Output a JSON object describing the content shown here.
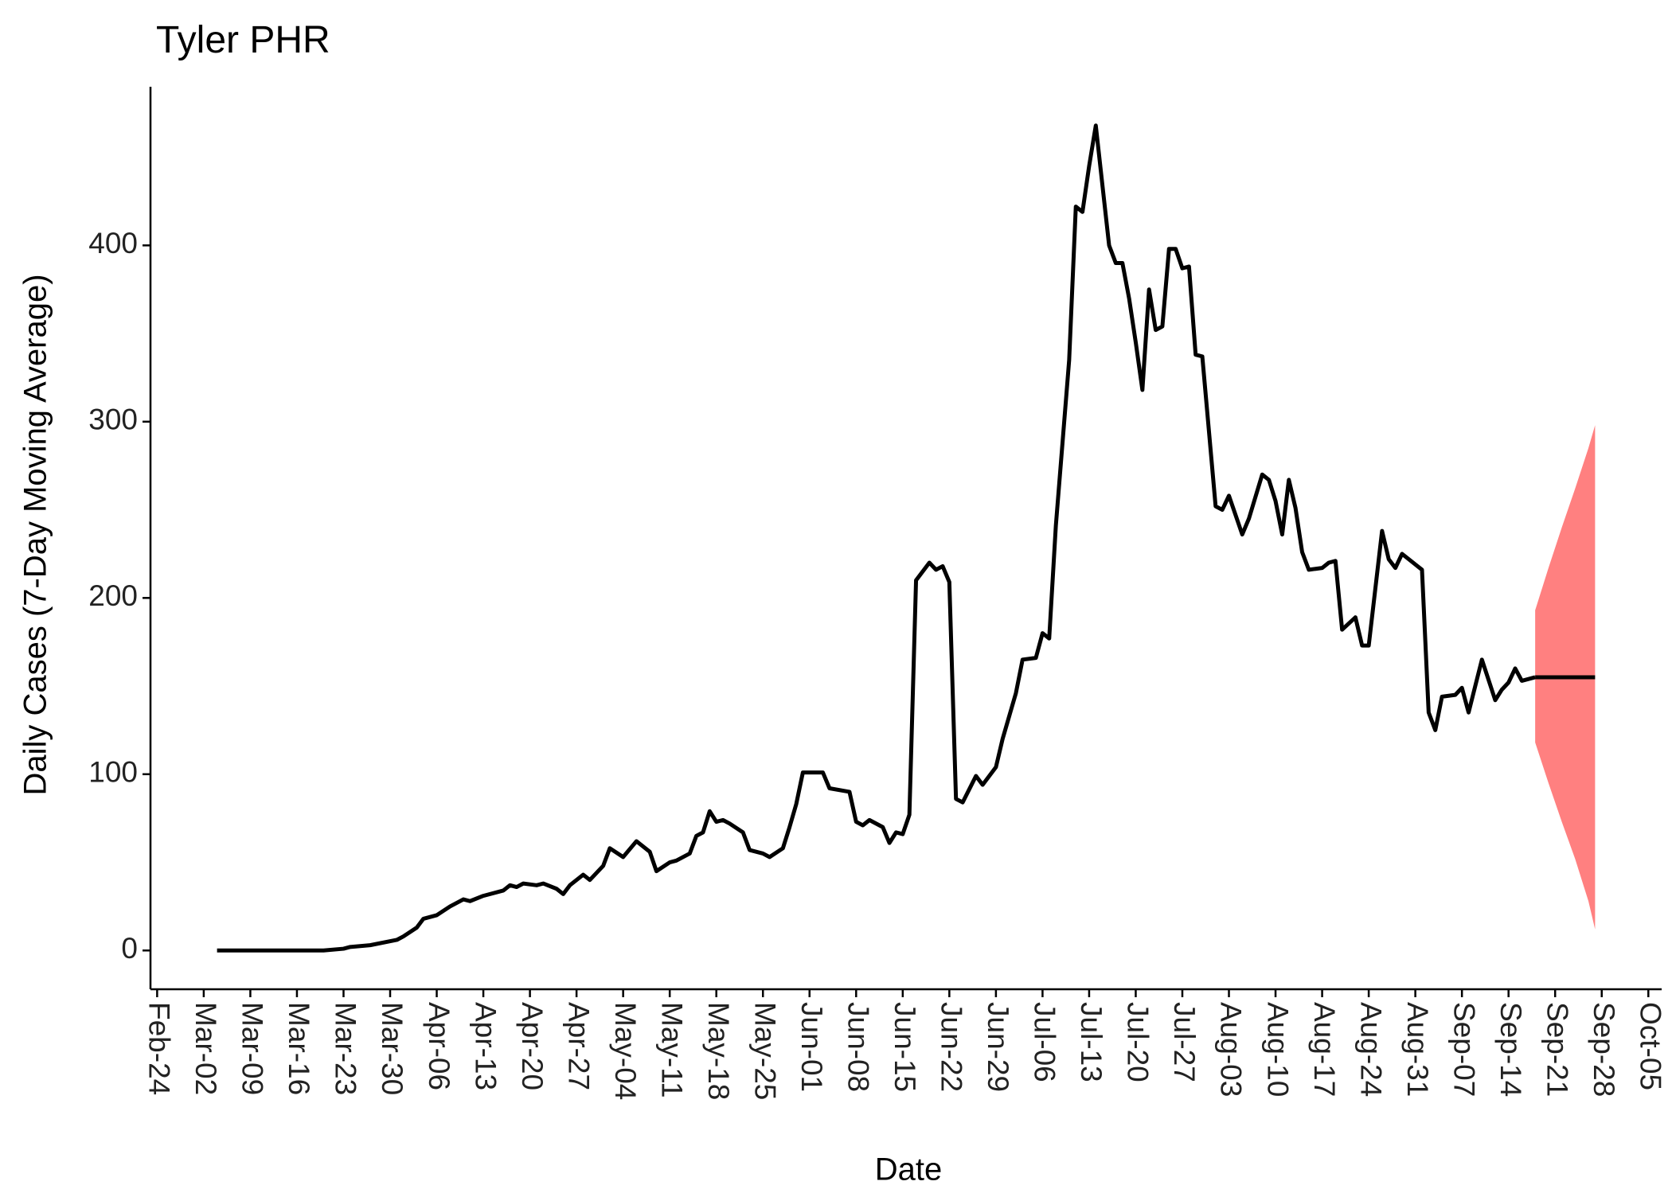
{
  "chart_data": {
    "type": "line",
    "title": "Tyler PHR",
    "x_label": "Date",
    "y_label": "Daily Cases (7-Day Moving Average)",
    "x": [
      "Mar-04",
      "Mar-20",
      "Mar-23",
      "Mar-24",
      "Mar-27",
      "Mar-31",
      "Apr-01",
      "Apr-03",
      "Apr-04",
      "Apr-06",
      "Apr-08",
      "Apr-10",
      "Apr-11",
      "Apr-13",
      "Apr-16",
      "Apr-17",
      "Apr-18",
      "Apr-19",
      "Apr-21",
      "Apr-22",
      "Apr-24",
      "Apr-25",
      "Apr-26",
      "Apr-28",
      "Apr-29",
      "May-01",
      "May-02",
      "May-04",
      "May-06",
      "May-08",
      "May-09",
      "May-11",
      "May-12",
      "May-14",
      "May-15",
      "May-16",
      "May-17",
      "May-18",
      "May-19",
      "May-20",
      "May-22",
      "May-23",
      "May-25",
      "May-26",
      "May-28",
      "May-29",
      "May-30",
      "May-31",
      "Jun-02",
      "Jun-03",
      "Jun-04",
      "Jun-07",
      "Jun-08",
      "Jun-09",
      "Jun-10",
      "Jun-12",
      "Jun-13",
      "Jun-14",
      "Jun-15",
      "Jun-16",
      "Jun-17",
      "Jun-19",
      "Jun-20",
      "Jun-21",
      "Jun-22",
      "Jun-23",
      "Jun-24",
      "Jun-26",
      "Jun-27",
      "Jun-29",
      "Jun-30",
      "Jul-02",
      "Jul-03",
      "Jul-05",
      "Jul-06",
      "Jul-07",
      "Jul-08",
      "Jul-10",
      "Jul-11",
      "Jul-12",
      "Jul-13",
      "Jul-14",
      "Jul-16",
      "Jul-17",
      "Jul-18",
      "Jul-19",
      "Jul-20",
      "Jul-21",
      "Jul-22",
      "Jul-23",
      "Jul-24",
      "Jul-25",
      "Jul-26",
      "Jul-27",
      "Jul-28",
      "Jul-29",
      "Jul-30",
      "Aug-01",
      "Aug-02",
      "Aug-03",
      "Aug-05",
      "Aug-06",
      "Aug-08",
      "Aug-09",
      "Aug-10",
      "Aug-11",
      "Aug-12",
      "Aug-13",
      "Aug-14",
      "Aug-15",
      "Aug-17",
      "Aug-18",
      "Aug-19",
      "Aug-20",
      "Aug-22",
      "Aug-23",
      "Aug-24",
      "Aug-26",
      "Aug-27",
      "Aug-28",
      "Aug-29",
      "Aug-30",
      "Sep-01",
      "Sep-02",
      "Sep-03",
      "Sep-04",
      "Sep-06",
      "Sep-07",
      "Sep-08",
      "Sep-09",
      "Sep-10",
      "Sep-12",
      "Sep-13",
      "Sep-14",
      "Sep-15",
      "Sep-16",
      "Sep-18"
    ],
    "values": [
      0,
      0,
      1,
      2,
      3,
      6,
      8,
      13,
      18,
      20,
      25,
      29,
      28,
      31,
      34,
      37,
      36,
      38,
      37,
      38,
      35,
      32,
      37,
      43,
      40,
      48,
      58,
      53,
      62,
      56,
      45,
      50,
      51,
      55,
      65,
      67,
      79,
      73,
      74,
      72,
      67,
      57,
      55,
      53,
      58,
      70,
      83,
      101,
      101,
      101,
      92,
      90,
      73,
      71,
      74,
      70,
      61,
      67,
      66,
      77,
      210,
      220,
      216,
      218,
      209,
      86,
      84,
      99,
      94,
      104,
      120,
      146,
      165,
      166,
      180,
      177,
      241,
      335,
      422,
      419,
      445,
      468,
      400,
      390,
      390,
      370,
      345,
      318,
      375,
      352,
      354,
      398,
      398,
      387,
      388,
      338,
      337,
      252,
      250,
      258,
      236,
      245,
      270,
      267,
      255,
      236,
      267,
      251,
      226,
      216,
      217,
      220,
      221,
      182,
      189,
      173,
      173,
      238,
      222,
      217,
      225,
      222,
      216,
      135,
      125,
      144,
      145,
      149,
      135,
      150,
      165,
      142,
      148,
      152,
      160,
      153,
      155
    ],
    "color": "#000000",
    "forecast": {
      "x": [
        "Sep-18",
        "Sep-20",
        "Sep-22",
        "Sep-24",
        "Sep-26",
        "Sep-27"
      ],
      "values": [
        155,
        155,
        155,
        155,
        155,
        155
      ],
      "lower": [
        118,
        95,
        73,
        52,
        28,
        12
      ],
      "upper": [
        193,
        217,
        240,
        262,
        285,
        298
      ],
      "color": "#000000",
      "band_color": "#ff8080"
    },
    "xlim": [
      "Feb-23",
      "Oct-07"
    ],
    "xticks": [
      "Feb-24",
      "Mar-02",
      "Mar-09",
      "Mar-16",
      "Mar-23",
      "Mar-30",
      "Apr-06",
      "Apr-13",
      "Apr-20",
      "Apr-27",
      "May-04",
      "May-11",
      "May-18",
      "May-25",
      "Jun-01",
      "Jun-08",
      "Jun-15",
      "Jun-22",
      "Jun-29",
      "Jul-06",
      "Jul-13",
      "Jul-20",
      "Jul-27",
      "Aug-03",
      "Aug-10",
      "Aug-17",
      "Aug-24",
      "Aug-31",
      "Sep-07",
      "Sep-14",
      "Sep-21",
      "Sep-28",
      "Oct-05"
    ],
    "ylim": [
      -22,
      490
    ],
    "yticks": [
      0,
      100,
      200,
      300,
      400
    ],
    "grid": false
  }
}
